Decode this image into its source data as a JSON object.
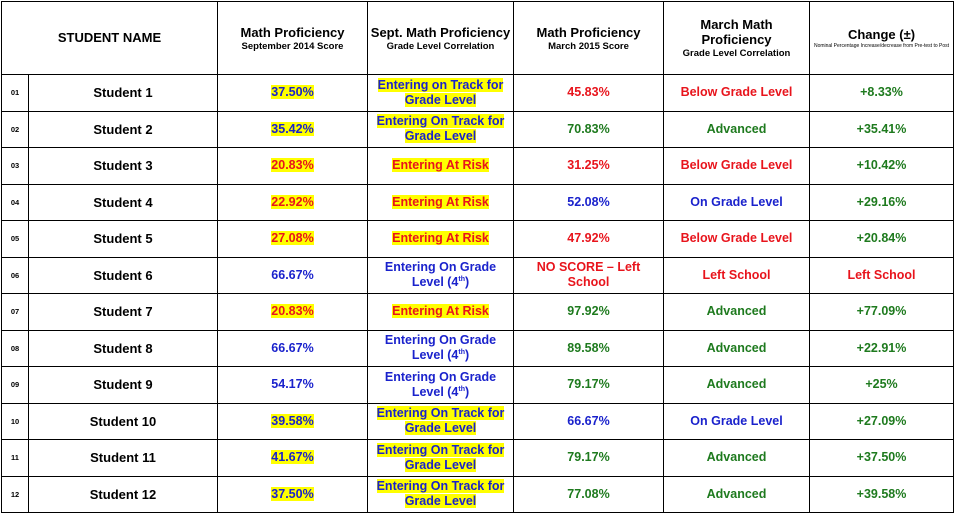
{
  "headers": {
    "student": "STUDENT NAME",
    "sept_score_title": "Math Proficiency",
    "sept_score_sub": "September 2014 Score",
    "sept_corr_title": "Sept. Math Proficiency",
    "sept_corr_sub": "Grade Level Correlation",
    "march_score_title": "Math Proficiency",
    "march_score_sub": "March 2015 Score",
    "march_corr_title": "March Math Proficiency",
    "march_corr_sub": "Grade Level Correlation",
    "change_title": "Change (±)",
    "change_sub": "Nominal Percentage Increase/decrease from Pre-test to Post"
  },
  "colors": {
    "blue": "#1a22cc",
    "red": "#e8141c",
    "green": "#1e7a1e",
    "highlight": "#ffff00"
  },
  "rows": [
    {
      "num": "01",
      "name": "Student 1",
      "sept": "37.50%",
      "sept_style": "blue-hl",
      "sept_corr": "Entering on Track for Grade Level",
      "sept_corr_style": "blue-hl",
      "march": "45.83%",
      "march_style": "red",
      "march_corr": "Below Grade Level",
      "march_corr_style": "red",
      "change": "+8.33%",
      "change_style": "green"
    },
    {
      "num": "02",
      "name": "Student 2",
      "sept": "35.42%",
      "sept_style": "blue-hl",
      "sept_corr": "Entering On Track for Grade Level",
      "sept_corr_style": "blue-hl",
      "march": "70.83%",
      "march_style": "green",
      "march_corr": "Advanced",
      "march_corr_style": "green",
      "change": "+35.41%",
      "change_style": "green"
    },
    {
      "num": "03",
      "name": "Student 3",
      "sept": "20.83%",
      "sept_style": "red-hl",
      "sept_corr": "Entering At Risk",
      "sept_corr_style": "red-hl",
      "march": "31.25%",
      "march_style": "red",
      "march_corr": "Below Grade Level",
      "march_corr_style": "red",
      "change": "+10.42%",
      "change_style": "green"
    },
    {
      "num": "04",
      "name": "Student 4",
      "sept": "22.92%",
      "sept_style": "red-hl",
      "sept_corr": "Entering At Risk",
      "sept_corr_style": "red-hl",
      "march": "52.08%",
      "march_style": "blue",
      "march_corr": "On Grade Level",
      "march_corr_style": "blue",
      "change": "+29.16%",
      "change_style": "green"
    },
    {
      "num": "05",
      "name": "Student 5",
      "sept": "27.08%",
      "sept_style": "red-hl",
      "sept_corr": "Entering At Risk",
      "sept_corr_style": "red-hl",
      "march": "47.92%",
      "march_style": "red",
      "march_corr": "Below Grade Level",
      "march_corr_style": "red",
      "change": "+20.84%",
      "change_style": "green"
    },
    {
      "num": "06",
      "name": "Student 6",
      "sept": "66.67%",
      "sept_style": "blue",
      "sept_corr": "Entering On Grade Level (4",
      "sept_corr_sup": "th",
      "sept_corr_tail": ")",
      "sept_corr_style": "blue",
      "march": "NO SCORE – Left School",
      "march_style": "red",
      "march_corr": "Left School",
      "march_corr_style": "red",
      "change": "Left School",
      "change_style": "red"
    },
    {
      "num": "07",
      "name": "Student 7",
      "sept": "20.83%",
      "sept_style": "red-hl",
      "sept_corr": "Entering At Risk",
      "sept_corr_style": "red-hl",
      "march": "97.92%",
      "march_style": "green",
      "march_corr": "Advanced",
      "march_corr_style": "green",
      "change": "+77.09%",
      "change_style": "green"
    },
    {
      "num": "08",
      "name": "Student 8",
      "sept": "66.67%",
      "sept_style": "blue",
      "sept_corr": "Entering On Grade Level (4",
      "sept_corr_sup": "th",
      "sept_corr_tail": ")",
      "sept_corr_style": "blue",
      "march": "89.58%",
      "march_style": "green",
      "march_corr": "Advanced",
      "march_corr_style": "green",
      "change": "+22.91%",
      "change_style": "green"
    },
    {
      "num": "09",
      "name": "Student 9",
      "sept": "54.17%",
      "sept_style": "blue",
      "sept_corr": "Entering On Grade Level (4",
      "sept_corr_sup": "th",
      "sept_corr_tail": ")",
      "sept_corr_style": "blue",
      "march": "79.17%",
      "march_style": "green",
      "march_corr": "Advanced",
      "march_corr_style": "green",
      "change": "+25%",
      "change_style": "green"
    },
    {
      "num": "10",
      "name": "Student 10",
      "sept": "39.58%",
      "sept_style": "blue-hl",
      "sept_corr": "Entering On Track for Grade Level",
      "sept_corr_style": "blue-hl",
      "march": "66.67%",
      "march_style": "blue",
      "march_corr": "On Grade Level",
      "march_corr_style": "blue",
      "change": "+27.09%",
      "change_style": "green"
    },
    {
      "num": "11",
      "name": "Student 11",
      "sept": "41.67%",
      "sept_style": "blue-hl",
      "sept_corr": "Entering On Track for Grade Level",
      "sept_corr_style": "blue-hl",
      "march": "79.17%",
      "march_style": "green",
      "march_corr": "Advanced",
      "march_corr_style": "green",
      "change": "+37.50%",
      "change_style": "green"
    },
    {
      "num": "12",
      "name": "Student 12",
      "sept": "37.50%",
      "sept_style": "blue-hl",
      "sept_corr": "Entering On Track for Grade Level",
      "sept_corr_style": "blue-hl",
      "march": "77.08%",
      "march_style": "green",
      "march_corr": "Advanced",
      "march_corr_style": "green",
      "change": "+39.58%",
      "change_style": "green"
    }
  ]
}
